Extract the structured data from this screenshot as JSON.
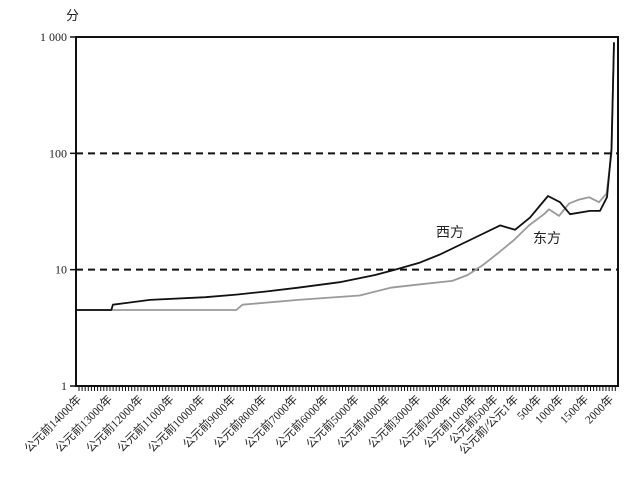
{
  "chart_data": {
    "type": "line",
    "ylabel": "分",
    "yscale": "log",
    "ylim": [
      1,
      1000
    ],
    "yticks": [
      {
        "value": 1,
        "label": "1"
      },
      {
        "value": 10,
        "label": "10"
      },
      {
        "value": 100,
        "label": "100"
      },
      {
        "value": 1000,
        "label": "1 000"
      }
    ],
    "gridlines": {
      "dashed_at": [
        10,
        100
      ]
    },
    "xlim": [
      -14000,
      2000
    ],
    "xticks": [
      {
        "value": -14000,
        "label": "公元前14000年"
      },
      {
        "value": -13000,
        "label": "公元前13000年"
      },
      {
        "value": -12000,
        "label": "公元前12000年"
      },
      {
        "value": -11000,
        "label": "公元前11000年"
      },
      {
        "value": -10000,
        "label": "公元前10000年"
      },
      {
        "value": -9000,
        "label": "公元前9000年"
      },
      {
        "value": -8000,
        "label": "公元前8000年"
      },
      {
        "value": -7000,
        "label": "公元前7000年"
      },
      {
        "value": -6000,
        "label": "公元前6000年"
      },
      {
        "value": -5000,
        "label": "公元前5000年"
      },
      {
        "value": -4000,
        "label": "公元前4000年"
      },
      {
        "value": -3000,
        "label": "公元前3000年"
      },
      {
        "value": -2000,
        "label": "公元前2000年"
      },
      {
        "value": -1000,
        "label": "公元前1000年"
      },
      {
        "value": -500,
        "label": "公元前500年"
      },
      {
        "value": 0,
        "label": "公元前/公元1年"
      },
      {
        "value": 500,
        "label": "500年"
      },
      {
        "value": 1000,
        "label": "1000年"
      },
      {
        "value": 1500,
        "label": "1500年"
      },
      {
        "value": 2000,
        "label": "2000年"
      }
    ],
    "series": [
      {
        "name": "西方",
        "color": "#111111",
        "x": [
          -14000,
          -13050,
          -13000,
          -11800,
          -10000,
          -9000,
          -8000,
          -7000,
          -5650,
          -4500,
          -3860,
          -3050,
          -2400,
          -1425,
          -450,
          20,
          320,
          680,
          920,
          1120,
          1520,
          1720,
          1860,
          1950,
          2000
        ],
        "y": [
          4.5,
          4.5,
          5,
          5.5,
          5.8,
          6.1,
          6.5,
          7,
          7.8,
          9,
          10,
          11.5,
          13.5,
          18,
          24,
          22,
          28,
          43,
          38,
          30,
          32,
          32,
          42,
          110,
          900
        ]
      },
      {
        "name": "东方",
        "color": "#9a9a9a",
        "x": [
          -14000,
          -9000,
          -8800,
          -7000,
          -5000,
          -4000,
          -3000,
          -2000,
          -1500,
          -1000,
          -500,
          0,
          300,
          600,
          700,
          900,
          1100,
          1300,
          1500,
          1700,
          1850,
          1950,
          2000
        ],
        "y": [
          4.5,
          4.5,
          5,
          5.5,
          6,
          7,
          7.5,
          8,
          9,
          11,
          14,
          18,
          24,
          30,
          33,
          29,
          37,
          40,
          42,
          38,
          45,
          100,
          900
        ]
      }
    ]
  }
}
